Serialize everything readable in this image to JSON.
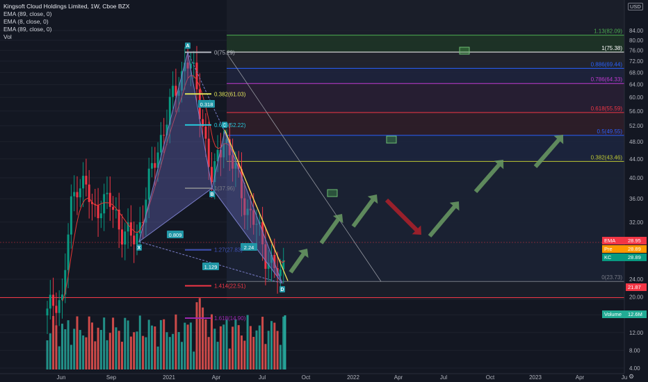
{
  "legend": {
    "title": "Kingsoft Cloud Holdings Limited, 1W, Cboe BZX",
    "ema1": "EMA (89, close, 0)",
    "ema2": "EMA (8, close, 0)",
    "ema3": "EMA (89, close, 0)",
    "vol": "Vol"
  },
  "currency": "USD",
  "price_badges": [
    {
      "label": "EMA",
      "value": "28.95",
      "color": "#f23645",
      "y": 28.95
    },
    {
      "label": "Pre",
      "value": "28.89",
      "color": "#ff9800",
      "y": 28.89
    },
    {
      "label": "KC",
      "value": "28.89",
      "color": "#089981",
      "y": 28.89
    }
  ],
  "level_badge": {
    "value": "21.87",
    "color": "#f23645",
    "y": 21.87
  },
  "volume_badge": {
    "label": "Volume",
    "value": "12.6M",
    "color": "#22ab94"
  },
  "colors": {
    "up": "#089981",
    "down": "#f23645",
    "vol_up": "#26a69a",
    "vol_down": "#ef5350",
    "pattern": "#5b5ea6",
    "ema_red": "#e53935",
    "trend": "#f7e15a",
    "arrow_up": "#6b9b64",
    "arrow_down": "#b0202a"
  },
  "chart_data": {
    "type": "candlestick",
    "title": "Kingsoft Cloud Holdings Limited, 1W, Cboe BZX",
    "y_axis": {
      "unit": "USD",
      "scale": "log",
      "ticks": [
        84,
        80,
        76,
        72,
        68,
        64,
        60,
        56,
        52,
        48,
        44,
        40,
        36,
        32,
        28,
        24,
        20,
        16,
        12,
        8,
        4
      ]
    },
    "x_axis": {
      "ticks": [
        "Jun",
        "Sep",
        "2021",
        "Apr",
        "Jul",
        "Oct",
        "2022",
        "Apr",
        "Jul",
        "Oct",
        "2023",
        "Apr",
        "Ju"
      ]
    },
    "pattern_points": [
      {
        "label": "X",
        "price": 29.0
      },
      {
        "label": "A",
        "price": 75.3
      },
      {
        "label": "B",
        "price": 37.96
      },
      {
        "label": "C",
        "price": 50.5
      },
      {
        "label": "D",
        "price": 23.5
      }
    ],
    "pattern_ratios": [
      "0.809",
      "0.318",
      "2.24",
      "1.129"
    ],
    "retracement_labels": [
      {
        "text": "0(75.29)",
        "price": 75.29
      },
      {
        "text": "0.382(61.03)",
        "price": 61.03
      },
      {
        "text": "0.618(52.22)",
        "price": 52.22
      },
      {
        "text": "1(37.96)",
        "price": 37.96
      },
      {
        "text": "1.27(27.83)",
        "price": 27.83
      },
      {
        "text": "1.414(22.51)",
        "price": 22.51
      },
      {
        "text": "1.618(14.90)",
        "price": 14.9
      }
    ],
    "fib_levels": [
      {
        "text": "1.13(82.09)",
        "price": 82.09,
        "color": "#4caf50"
      },
      {
        "text": "1(75.38)",
        "price": 75.38,
        "color": "#ffffff"
      },
      {
        "text": "0.886(69.44)",
        "price": 69.44,
        "color": "#2962ff"
      },
      {
        "text": "0.786(64.33)",
        "price": 64.33,
        "color": "#c03ad1"
      },
      {
        "text": "0.618(55.59)",
        "price": 55.59,
        "color": "#f23645"
      },
      {
        "text": "0.5(49.55)",
        "price": 49.55,
        "color": "#2962ff"
      },
      {
        "text": "0.382(43.46)",
        "price": 43.46,
        "color": "#c0ca33"
      },
      {
        "text": "0(23.73)",
        "price": 23.73,
        "color": "#787b86"
      }
    ],
    "horizontal_line": 21.87,
    "last_price": 28.89,
    "volume_last": "12.6M"
  }
}
